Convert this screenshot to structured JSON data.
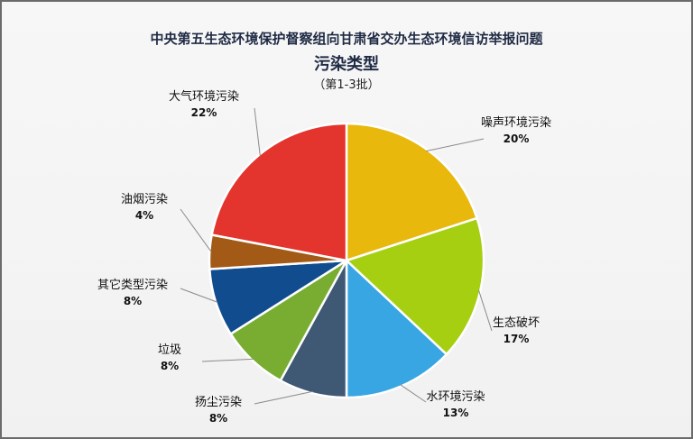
{
  "chart_data": {
    "type": "pie",
    "title": "中央第五生态环境保护督察组向甘肃省交办生态环境信访举报问题",
    "subtitle": "污染类型",
    "note": "（第1-3批）",
    "slices": [
      {
        "label": "噪声环境污染",
        "value": 20,
        "value_text": "20%",
        "color": "#e8b80c"
      },
      {
        "label": "生态破坏",
        "value": 17,
        "value_text": "17%",
        "color": "#a6cf12"
      },
      {
        "label": "水环境污染",
        "value": 13,
        "value_text": "13%",
        "color": "#38a6e3"
      },
      {
        "label": "扬尘污染",
        "value": 8,
        "value_text": "8%",
        "color": "#3f5874"
      },
      {
        "label": "垃圾",
        "value": 8,
        "value_text": "8%",
        "color": "#78ad32"
      },
      {
        "label": "其它类型污染",
        "value": 8,
        "value_text": "8%",
        "color": "#114c8f"
      },
      {
        "label": "油烟污染",
        "value": 4,
        "value_text": "4%",
        "color": "#a35a16"
      },
      {
        "label": "大气环境污染",
        "value": 22,
        "value_text": "22%",
        "color": "#e3342d"
      }
    ]
  }
}
